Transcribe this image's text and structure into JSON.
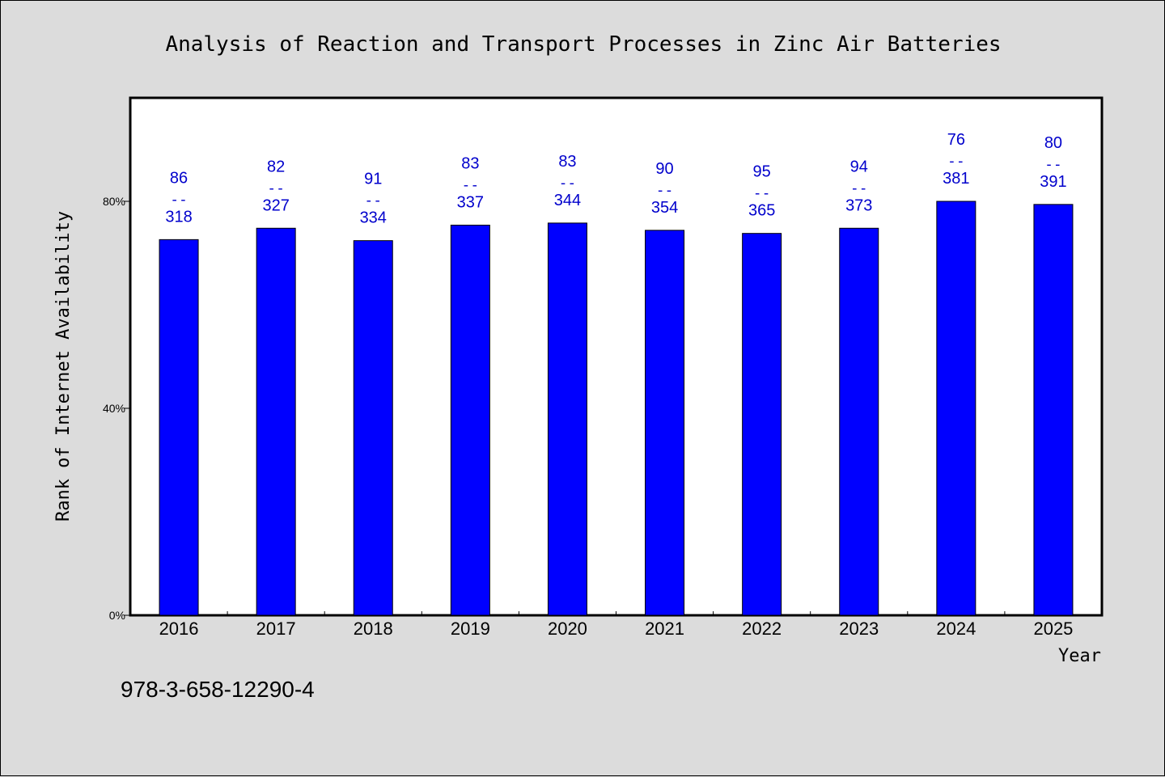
{
  "chart_data": {
    "type": "bar",
    "title": "Analysis of Reaction and Transport Processes in Zinc Air Batteries",
    "xlabel": "Year",
    "ylabel": "Rank of Internet Availability",
    "categories": [
      "2016",
      "2017",
      "2018",
      "2019",
      "2020",
      "2021",
      "2022",
      "2023",
      "2024",
      "2025"
    ],
    "values": [
      72.6,
      74.8,
      72.4,
      75.4,
      75.8,
      74.4,
      73.8,
      74.8,
      80.0,
      79.4
    ],
    "label_top": [
      "86",
      "82",
      "91",
      "83",
      "83",
      "90",
      "95",
      "94",
      "76",
      "80"
    ],
    "label_bottom": [
      "318",
      "327",
      "334",
      "337",
      "344",
      "354",
      "365",
      "373",
      "381",
      "391"
    ],
    "label_separator": "--",
    "ylim": [
      0,
      100
    ],
    "yticks": [
      0,
      40,
      80
    ],
    "ytick_labels": [
      "0%",
      "40%",
      "80%"
    ],
    "grid": false,
    "bar_color": "#0000ff",
    "label_color": "#0000cc"
  },
  "footer": {
    "isbn": "978-3-658-12290-4"
  }
}
